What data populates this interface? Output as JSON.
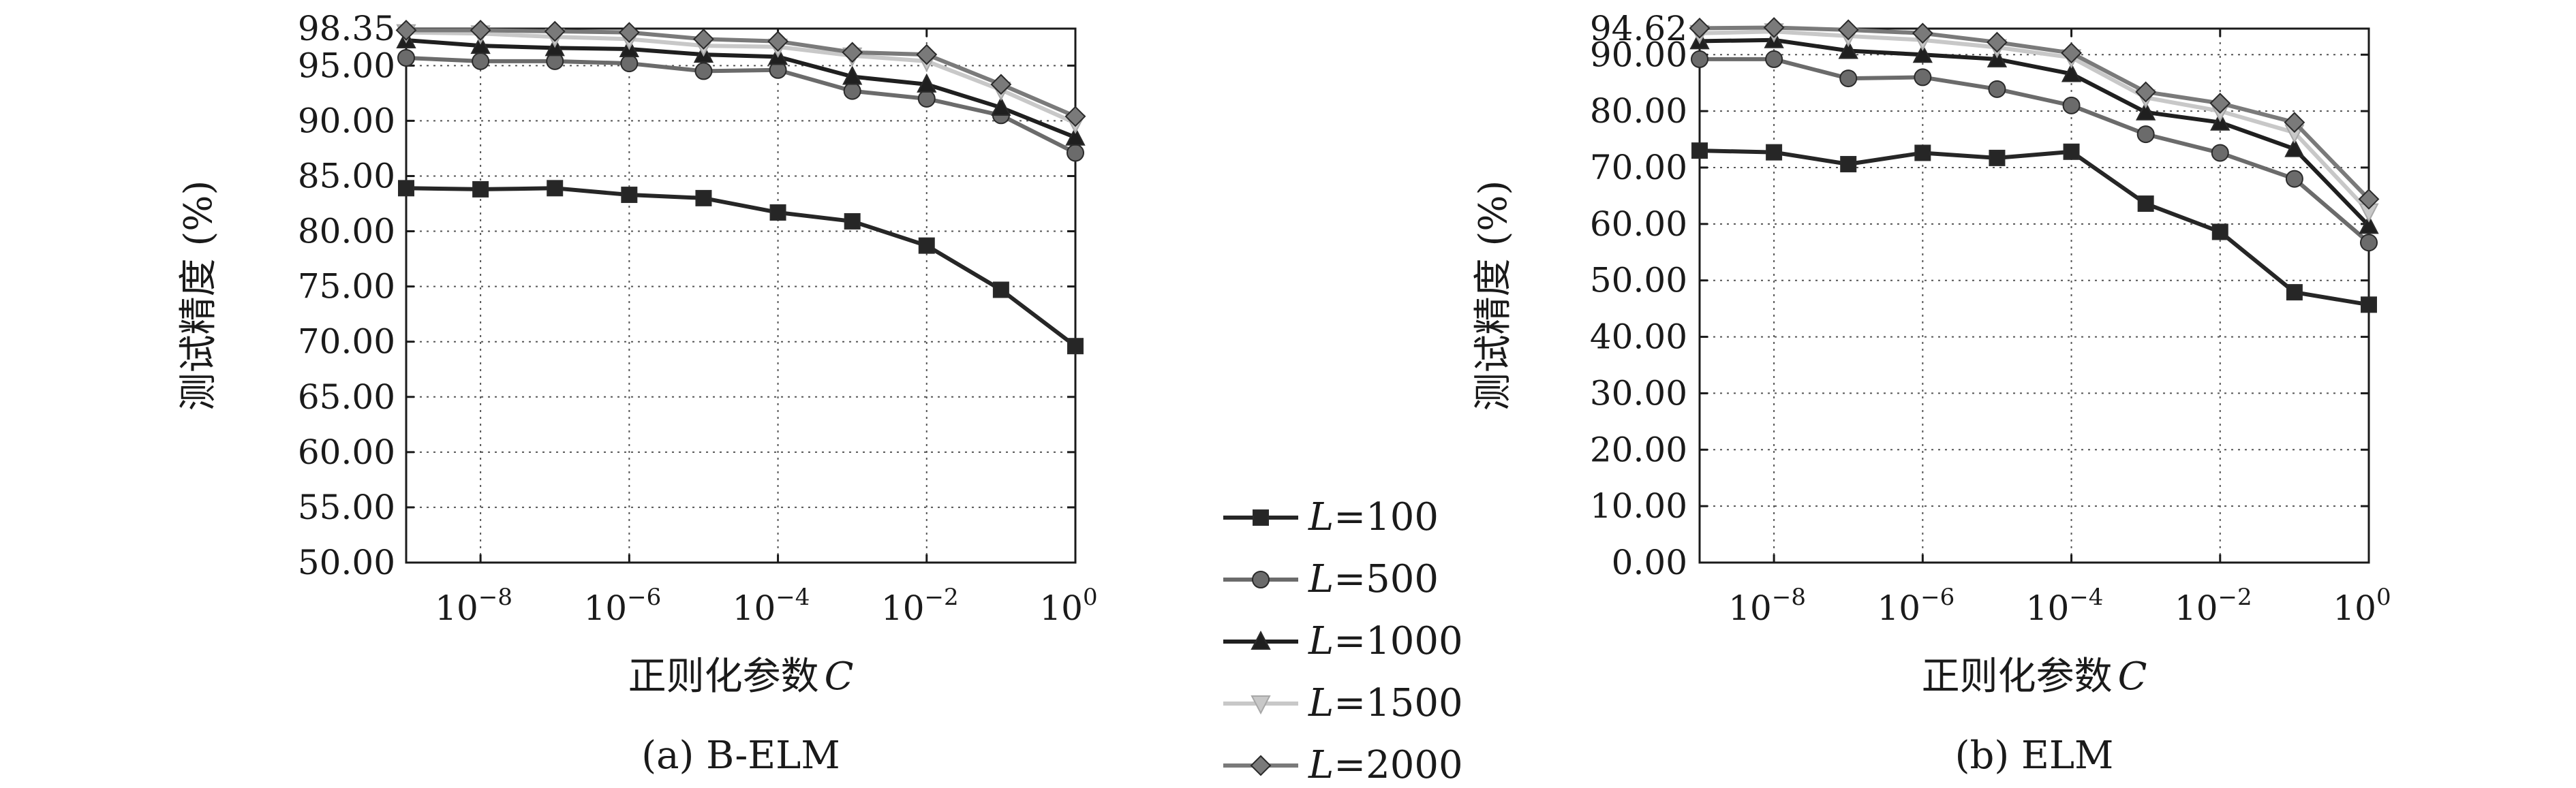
{
  "panels": [
    {
      "caption": "(a) B-ELM",
      "chart_data": {
        "type": "line",
        "x_exponents": [
          -9,
          -8,
          -7,
          -6,
          -5,
          -4,
          -3,
          -2,
          -1,
          0
        ],
        "xticks": [
          "10^-8",
          "10^-6",
          "10^-4",
          "10^-2",
          "10^0"
        ],
        "xtick_exponents": [
          -8,
          -6,
          -4,
          -2,
          0
        ],
        "xlabel": "正则化参数",
        "xlabel_var": "C",
        "ylabel": "测试精度 (%)",
        "yticks": [
          "98.35",
          "95.00",
          "90.00",
          "85.00",
          "80.00",
          "75.00",
          "70.00",
          "65.00",
          "60.00",
          "55.00",
          "50.00"
        ],
        "ylim": [
          50.0,
          98.35
        ],
        "grid": true,
        "series": [
          {
            "name": "L=100",
            "values": [
              83.9,
              83.8,
              83.9,
              83.3,
              83.0,
              81.7,
              80.9,
              78.7,
              74.7,
              69.6
            ]
          },
          {
            "name": "L=500",
            "values": [
              95.7,
              95.4,
              95.4,
              95.2,
              94.5,
              94.6,
              92.7,
              92.0,
              90.5,
              87.1
            ]
          },
          {
            "name": "L=1000",
            "values": [
              97.3,
              96.8,
              96.6,
              96.5,
              96.0,
              95.8,
              94.0,
              93.3,
              91.2,
              88.5
            ]
          },
          {
            "name": "L=1500",
            "values": [
              98.0,
              97.9,
              97.6,
              97.4,
              96.8,
              96.7,
              95.9,
              95.4,
              92.8,
              89.8
            ]
          },
          {
            "name": "L=2000",
            "values": [
              98.2,
              98.2,
              98.1,
              98.0,
              97.4,
              97.2,
              96.2,
              96.0,
              93.3,
              90.4
            ]
          }
        ]
      }
    },
    {
      "caption": "(b) ELM",
      "chart_data": {
        "type": "line",
        "x_exponents": [
          -9,
          -8,
          -7,
          -6,
          -5,
          -4,
          -3,
          -2,
          -1,
          0
        ],
        "xticks": [
          "10^-8",
          "10^-6",
          "10^-4",
          "10^-2",
          "10^0"
        ],
        "xtick_exponents": [
          -8,
          -6,
          -4,
          -2,
          0
        ],
        "xlabel": "正则化参数",
        "xlabel_var": "C",
        "ylabel": "测试精度 (%)",
        "yticks": [
          "94.62",
          "90.00",
          "80.00",
          "70.00",
          "60.00",
          "50.00",
          "40.00",
          "30.00",
          "20.00",
          "10.00",
          "0.00"
        ],
        "ylim": [
          0.0,
          94.62
        ],
        "grid": true,
        "series": [
          {
            "name": "L=100",
            "values": [
              73.0,
              72.7,
              70.6,
              72.6,
              71.7,
              72.8,
              63.6,
              58.6,
              47.9,
              45.7
            ]
          },
          {
            "name": "L=500",
            "values": [
              89.2,
              89.2,
              85.8,
              86.0,
              83.9,
              81.0,
              75.9,
              72.6,
              68.0,
              56.7
            ]
          },
          {
            "name": "L=1000",
            "values": [
              92.4,
              92.6,
              90.7,
              90.0,
              89.2,
              86.6,
              79.8,
              78.0,
              73.3,
              59.7
            ]
          },
          {
            "name": "L=1500",
            "values": [
              93.8,
              94.1,
              93.3,
              92.6,
              91.3,
              89.5,
              82.4,
              80.0,
              76.2,
              62.2
            ]
          },
          {
            "name": "L=2000",
            "values": [
              94.7,
              94.8,
              94.4,
              93.8,
              92.2,
              90.3,
              83.4,
              81.4,
              78.0,
              64.4
            ]
          }
        ]
      }
    }
  ],
  "legend": {
    "placement": "center-bottom",
    "entries": [
      {
        "var": "L",
        "text": "=100",
        "marker": "square",
        "color": "#262626"
      },
      {
        "var": "L",
        "text": "=500",
        "marker": "circle",
        "color": "#6b6b6b"
      },
      {
        "var": "L",
        "text": "=1000",
        "marker": "triangle-up",
        "color": "#1f1f1f"
      },
      {
        "var": "L",
        "text": "=1500",
        "marker": "triangle-down",
        "color": "#c8c8c8"
      },
      {
        "var": "L",
        "text": "=2000",
        "marker": "diamond",
        "color": "#7a7a7a"
      }
    ]
  },
  "series_style": [
    {
      "marker": "square",
      "color": "#262626"
    },
    {
      "marker": "circle",
      "color": "#6b6b6b"
    },
    {
      "marker": "triangle-up",
      "color": "#1f1f1f"
    },
    {
      "marker": "triangle-down",
      "color": "#c8c8c8"
    },
    {
      "marker": "diamond",
      "color": "#7a7a7a"
    }
  ]
}
